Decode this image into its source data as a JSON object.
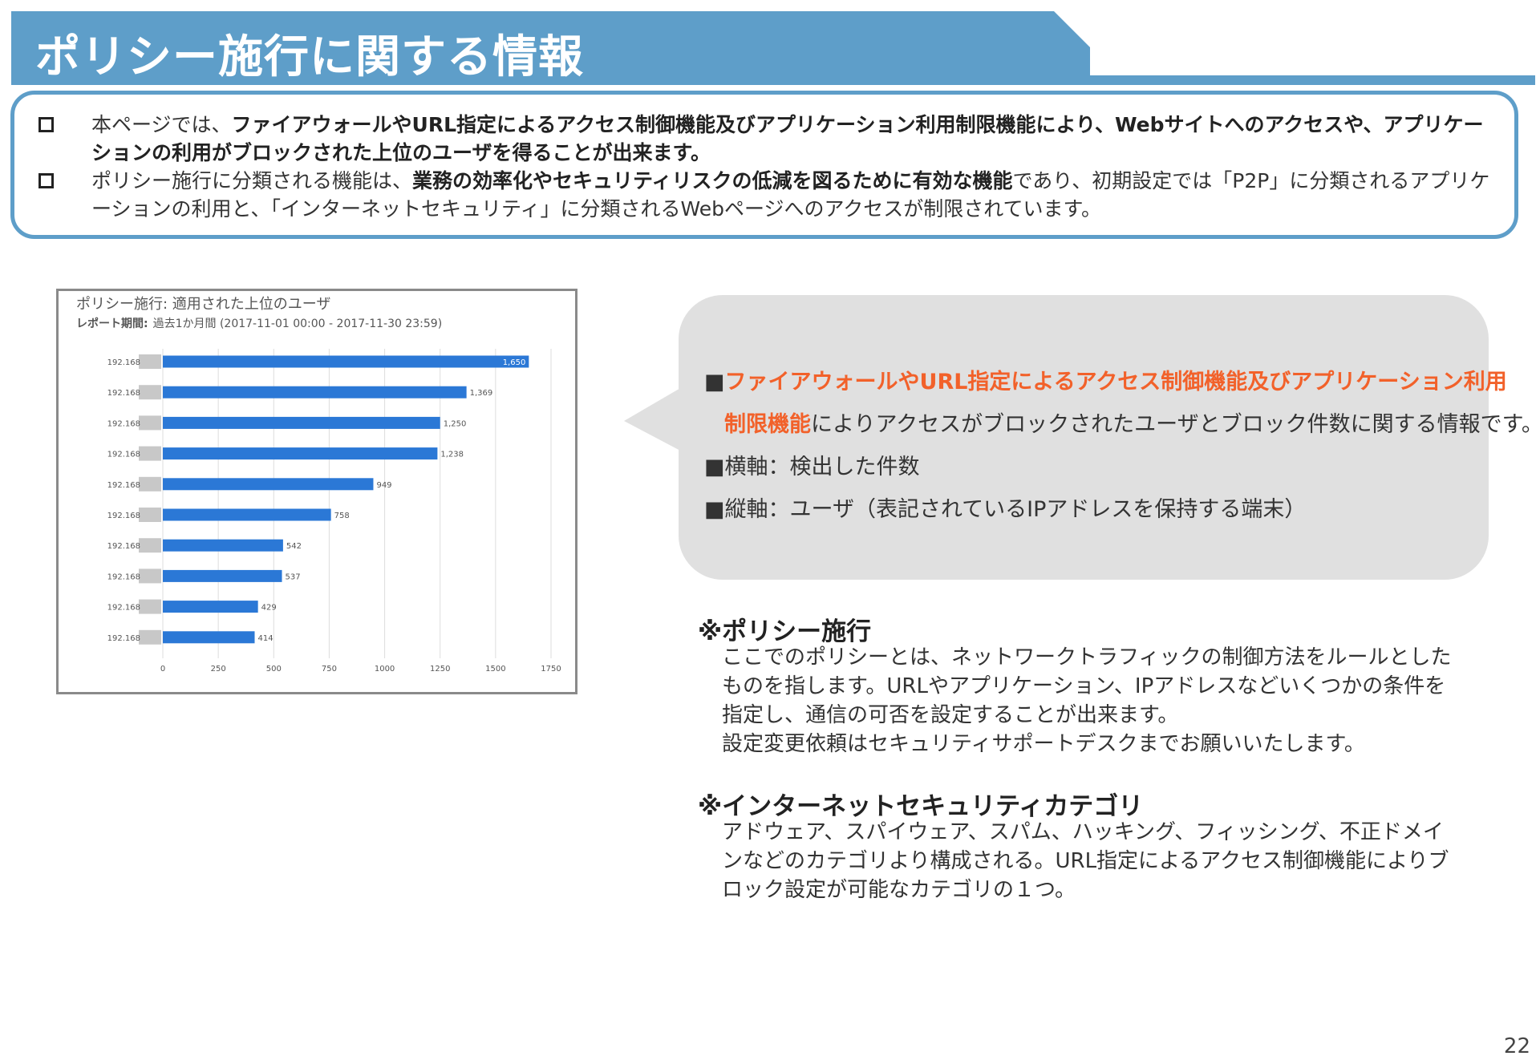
{
  "header": {
    "title": "ポリシー施行に関する情報"
  },
  "summary": {
    "item1_pre": "本ページでは、",
    "item1_bold": "ファイアウォールやURL指定によるアクセス制御機能及びアプリケーション利用制限機能により、Webサイトへのアクセスや、アプリケーションの利用がブロックされた上位のユーザを得ることが出来ます。",
    "item2_pre": "ポリシー施行に分類される機能は、",
    "item2_bold": "業務の効率化やセキュリティリスクの低減を図るために有効な機能",
    "item2_post": "であり、初期設定では「P2P」に分類されるアプリケーションの利用と、「インターネットセキュリティ」に分類されるWebページへのアクセスが制限されています。"
  },
  "chart_panel": {
    "title": "ポリシー施行: 適用された上位のユーザ",
    "period_label": "レポート期間:",
    "period_value": "過去1か月間 (2017-11-01 00:00 - 2017-11-30 23:59)"
  },
  "chart_data": {
    "type": "bar",
    "orientation": "horizontal",
    "title": "ポリシー施行: 適用された上位のユーザ",
    "categories": [
      "192.168",
      "192.168",
      "192.168",
      "192.168",
      "192.168",
      "192.168",
      "192.168",
      "192.168",
      "192.168",
      "192.168"
    ],
    "values": [
      1650,
      1369,
      1250,
      1238,
      949,
      758,
      542,
      537,
      429,
      414
    ],
    "data_labels": [
      "1,650",
      "1,369",
      "1,250",
      "1,238",
      "949",
      "758",
      "542",
      "537",
      "429",
      "414"
    ],
    "xticks": [
      0,
      250,
      500,
      750,
      1000,
      1250,
      1500,
      1750
    ],
    "xlim": [
      0,
      1750
    ],
    "grid": true,
    "bar_color": "#2b78d6"
  },
  "bubble": {
    "marker": "■",
    "line1_orange_a": "ファイアウォールやURL指定によるアクセス制御機能及びアプリケーション利用",
    "line1_orange_b": "制限機能",
    "line1_rest": "によりアクセスがブロックされたユーザとブロック件数に関する情報です。",
    "line2": "横軸：検出した件数",
    "line3": "縦軸：ユーザ（表記されているIPアドレスを保持する端末）"
  },
  "notes": {
    "note1_title": "※ポリシー施行",
    "note1_body": "ここでのポリシーとは、ネットワークトラフィックの制御方法をルールとしたものを指します。URLやアプリケーション、IPアドレスなどいくつかの条件を指定し、通信の可否を設定することが出来ます。",
    "note1_body2": "設定変更依頼はセキュリティサポートデスクまでお願いいたします。",
    "note2_title": "※インターネットセキュリティカテゴリ",
    "note2_body": "アドウェア、スパイウェア、スパム、ハッキング、フィッシング、不正ドメインなどのカテゴリより構成される。URL指定によるアクセス制御機能によりブロック設定が可能なカテゴリの１つ。"
  },
  "footer": {
    "page_number": "22"
  },
  "colors": {
    "banner": "#5e9ec9",
    "accent_orange": "#f2612a",
    "bubble_bg": "#e0e0e0"
  }
}
